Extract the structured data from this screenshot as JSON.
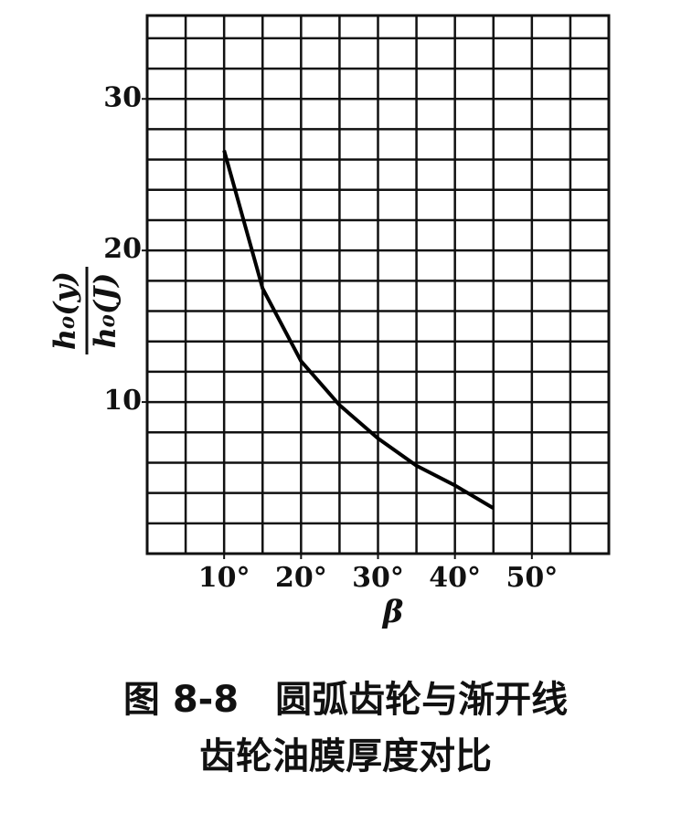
{
  "chart_data": {
    "type": "line",
    "x": [
      10,
      15,
      20,
      25,
      30,
      35,
      40,
      45
    ],
    "series": [
      {
        "values": [
          26.6,
          17.5,
          12.7,
          9.8,
          7.6,
          5.8,
          4.5,
          3.0
        ],
        "color": "#000000"
      }
    ],
    "xlim": [
      0,
      60
    ],
    "ylim": [
      0,
      35.5
    ],
    "xticks": [
      {
        "value": 10,
        "label": "10°"
      },
      {
        "value": 20,
        "label": "20°"
      },
      {
        "value": 30,
        "label": "30°"
      },
      {
        "value": 40,
        "label": "40°"
      },
      {
        "value": 50,
        "label": "50°"
      }
    ],
    "yticks": [
      10,
      20,
      30
    ],
    "xgrid": [
      5,
      10,
      15,
      20,
      25,
      30,
      35,
      40,
      45,
      50,
      55
    ],
    "ygrid": [
      2,
      4,
      6,
      8,
      10,
      12,
      14,
      16,
      18,
      20,
      22,
      24,
      26,
      28,
      30,
      32,
      34
    ],
    "grid": true,
    "xlabel": "β",
    "ylabel": {
      "numerator": "h₀(y)",
      "denominator": "h₀(J)"
    },
    "caption": [
      "图 8-8　圆弧齿轮与渐开线",
      "齿轮油膜厚度对比"
    ]
  }
}
